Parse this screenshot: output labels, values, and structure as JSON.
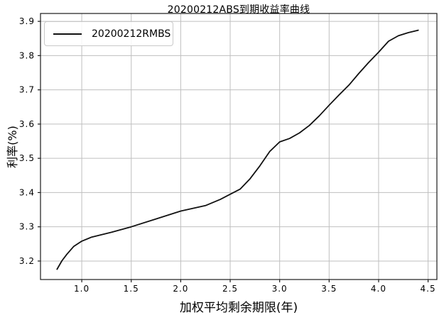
{
  "chart_data": {
    "type": "line",
    "title": "20200212ABS到期收益率曲线",
    "xlabel": "加权平均剩余期限(年)",
    "ylabel": "利率(%)",
    "legend": {
      "label": "20200212RMBS",
      "position": "upper-left"
    },
    "grid": true,
    "legend_visible": true,
    "xlim": [
      0.583,
      4.589
    ],
    "ylim": [
      3.146,
      3.923
    ],
    "xticks": [
      1.0,
      1.5,
      2.0,
      2.5,
      3.0,
      3.5,
      4.0,
      4.5
    ],
    "yticks": [
      3.2,
      3.3,
      3.4,
      3.5,
      3.6,
      3.7,
      3.8,
      3.9
    ],
    "colors": {
      "line": "#111111",
      "grid": "#bfbfbf",
      "axis": "#1a1a1a",
      "text": "#000000",
      "background": "#ffffff",
      "legend_border": "#c9c9c9"
    },
    "series": [
      {
        "name": "20200212RMBS",
        "x": [
          0.75,
          0.8,
          0.85,
          0.92,
          1.0,
          1.1,
          1.3,
          1.5,
          1.75,
          2.0,
          2.25,
          2.4,
          2.5,
          2.6,
          2.7,
          2.8,
          2.9,
          3.0,
          3.1,
          3.2,
          3.3,
          3.4,
          3.5,
          3.6,
          3.7,
          3.8,
          3.9,
          4.0,
          4.1,
          4.2,
          4.3,
          4.4
        ],
        "y": [
          3.176,
          3.201,
          3.22,
          3.243,
          3.258,
          3.27,
          3.284,
          3.3,
          3.323,
          3.346,
          3.362,
          3.38,
          3.395,
          3.41,
          3.44,
          3.478,
          3.52,
          3.548,
          3.558,
          3.574,
          3.596,
          3.624,
          3.655,
          3.685,
          3.714,
          3.748,
          3.78,
          3.81,
          3.842,
          3.858,
          3.867,
          3.874
        ]
      }
    ]
  }
}
